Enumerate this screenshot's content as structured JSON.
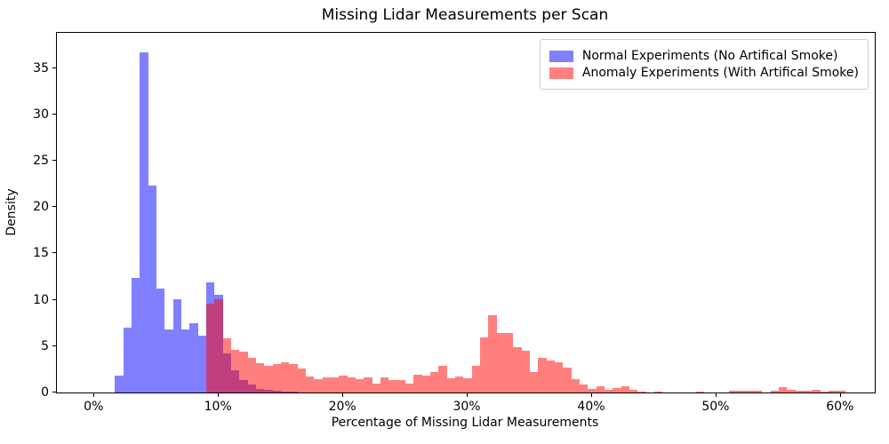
{
  "title": "Missing Lidar Measurements per Scan",
  "chart_data": {
    "type": "bar",
    "subtype": "overlaid-histogram",
    "title": "Missing Lidar Measurements per Scan",
    "xlabel": "Percentage of Missing Lidar Measurements",
    "ylabel": "Density",
    "xlim_pct": [
      -2.95,
      62.8
    ],
    "ylim": [
      0,
      38.8
    ],
    "grid": false,
    "legend_position": "upper right",
    "background_color": "#ffffff",
    "spine_color": "#000000",
    "legend_border_color": "#cccccc",
    "bin_width_pct": 0.667,
    "x_ticks": [
      {
        "value": 0,
        "label": "0%"
      },
      {
        "value": 10,
        "label": "10%"
      },
      {
        "value": 20,
        "label": "20%"
      },
      {
        "value": 30,
        "label": "30%"
      },
      {
        "value": 40,
        "label": "40%"
      },
      {
        "value": 50,
        "label": "50%"
      },
      {
        "value": 60,
        "label": "60%"
      }
    ],
    "y_ticks": [
      {
        "value": 0,
        "label": "0"
      },
      {
        "value": 5,
        "label": "5"
      },
      {
        "value": 10,
        "label": "10"
      },
      {
        "value": 15,
        "label": "15"
      },
      {
        "value": 20,
        "label": "20"
      },
      {
        "value": 25,
        "label": "25"
      },
      {
        "value": 30,
        "label": "30"
      },
      {
        "value": 35,
        "label": "35"
      }
    ],
    "series": [
      {
        "name": "Normal Experiments (No Artifical Smoke)",
        "color": "rgba(0,0,255,0.5)",
        "swatch_color": "rgba(0,0,255,0.5)",
        "bins_start_pct": 1.71,
        "values": [
          1.8,
          7.0,
          12.4,
          36.7,
          22.3,
          11.2,
          6.8,
          10.1,
          6.8,
          7.5,
          6.1,
          11.9,
          10.5,
          4.2,
          2.4,
          1.3,
          0.85,
          0.35,
          0.25,
          0.15,
          0.1,
          0.05
        ]
      },
      {
        "name": "Anomaly Experiments (With Artifical Smoke)",
        "color": "rgba(255,0,0,0.5)",
        "swatch_color": "rgba(255,0,0,0.5)",
        "bins_start_pct": 9.05,
        "values": [
          9.6,
          10.1,
          5.85,
          4.6,
          4.4,
          3.7,
          3.2,
          2.9,
          3.1,
          3.3,
          3.1,
          2.6,
          1.75,
          1.4,
          1.65,
          1.6,
          1.8,
          1.6,
          1.4,
          1.6,
          0.95,
          1.6,
          1.35,
          1.3,
          0.95,
          1.9,
          1.85,
          2.2,
          2.9,
          1.5,
          1.7,
          1.5,
          2.9,
          5.9,
          8.3,
          6.45,
          6.4,
          4.85,
          4.5,
          2.2,
          3.7,
          3.45,
          3.3,
          2.65,
          1.45,
          0.9,
          0.4,
          0.65,
          0.3,
          0.45,
          0.7,
          0.3,
          0.1,
          0,
          0.1,
          0,
          0,
          0,
          0,
          0.1,
          0,
          0,
          0,
          0.15,
          0.2,
          0.2,
          0.15,
          0,
          0.2,
          0.55,
          0.25,
          0.15,
          0.15,
          0.25,
          0.1,
          0.15,
          0.2
        ]
      }
    ]
  }
}
